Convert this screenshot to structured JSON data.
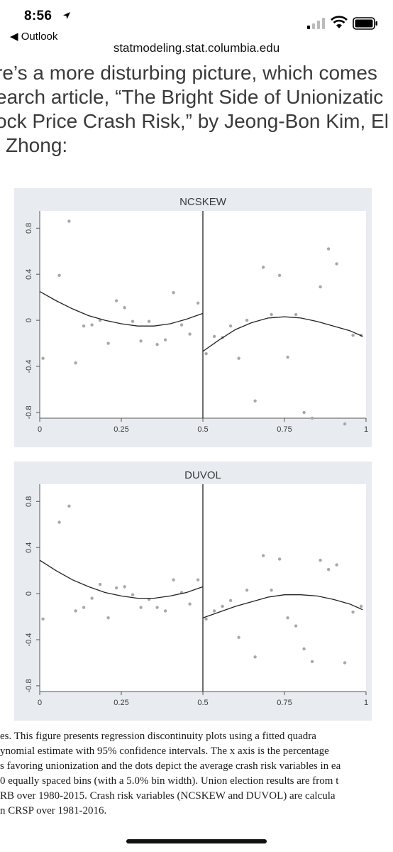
{
  "status_bar": {
    "time": "8:56",
    "back_app": "◀ Outlook"
  },
  "url": "statmodeling.stat.columbia.edu",
  "article_lines": [
    "re’s a more disturbing picture, which comes",
    "earch article, “The Bright Side of Unionizatic",
    "ock Price Crash Risk,” by Jeong-Bon Kim, El",
    "i Zhong:"
  ],
  "chart_data": [
    {
      "type": "scatter",
      "title": "NCSKEW",
      "xlim": [
        0,
        1
      ],
      "ylim": [
        -0.85,
        0.95
      ],
      "xticks": [
        0,
        0.25,
        0.5,
        0.75,
        1
      ],
      "xtick_labels": [
        "0",
        "0.25",
        "0.5",
        "0.75",
        "1"
      ],
      "yticks": [
        -0.8,
        -0.4,
        0,
        0.4,
        0.8
      ],
      "ytick_labels": [
        "-0.8",
        "-0.4",
        "0",
        "0.4",
        "0.8"
      ],
      "cutoff": 0.5,
      "points": [
        [
          0.01,
          -0.33
        ],
        [
          0.06,
          0.39
        ],
        [
          0.09,
          0.86
        ],
        [
          0.11,
          -0.37
        ],
        [
          0.135,
          -0.05
        ],
        [
          0.16,
          -0.04
        ],
        [
          0.185,
          0.0
        ],
        [
          0.21,
          -0.2
        ],
        [
          0.235,
          0.17
        ],
        [
          0.26,
          0.11
        ],
        [
          0.285,
          -0.01
        ],
        [
          0.31,
          -0.18
        ],
        [
          0.335,
          -0.01
        ],
        [
          0.36,
          -0.21
        ],
        [
          0.385,
          -0.17
        ],
        [
          0.41,
          0.24
        ],
        [
          0.435,
          -0.04
        ],
        [
          0.46,
          -0.12
        ],
        [
          0.485,
          0.15
        ],
        [
          0.51,
          -0.29
        ],
        [
          0.535,
          -0.14
        ],
        [
          0.56,
          -0.15
        ],
        [
          0.585,
          -0.05
        ],
        [
          0.61,
          -0.33
        ],
        [
          0.635,
          0.0
        ],
        [
          0.66,
          -0.7
        ],
        [
          0.685,
          0.46
        ],
        [
          0.71,
          0.05
        ],
        [
          0.735,
          0.39
        ],
        [
          0.76,
          -0.32
        ],
        [
          0.785,
          0.05
        ],
        [
          0.81,
          -0.8
        ],
        [
          0.835,
          -0.85
        ],
        [
          0.86,
          0.29
        ],
        [
          0.885,
          0.62
        ],
        [
          0.91,
          0.49
        ],
        [
          0.935,
          -0.9
        ],
        [
          0.96,
          -0.13
        ],
        [
          0.985,
          -0.13
        ]
      ],
      "fit_left": [
        [
          0.0,
          0.25
        ],
        [
          0.05,
          0.17
        ],
        [
          0.1,
          0.1
        ],
        [
          0.15,
          0.04
        ],
        [
          0.2,
          0.0
        ],
        [
          0.25,
          -0.03
        ],
        [
          0.3,
          -0.05
        ],
        [
          0.35,
          -0.05
        ],
        [
          0.4,
          -0.03
        ],
        [
          0.45,
          0.01
        ],
        [
          0.5,
          0.06
        ]
      ],
      "fit_right": [
        [
          0.5,
          -0.27
        ],
        [
          0.55,
          -0.17
        ],
        [
          0.6,
          -0.08
        ],
        [
          0.65,
          -0.02
        ],
        [
          0.7,
          0.02
        ],
        [
          0.75,
          0.03
        ],
        [
          0.8,
          0.02
        ],
        [
          0.85,
          -0.01
        ],
        [
          0.9,
          -0.05
        ],
        [
          0.95,
          -0.09
        ],
        [
          0.99,
          -0.14
        ]
      ]
    },
    {
      "type": "scatter",
      "title": "DUVOL",
      "xlim": [
        0,
        1
      ],
      "ylim": [
        -0.85,
        0.95
      ],
      "xticks": [
        0,
        0.25,
        0.5,
        0.75,
        1
      ],
      "xtick_labels": [
        "0",
        "0.25",
        "0.5",
        "0.75",
        "1"
      ],
      "yticks": [
        -0.8,
        -0.4,
        0,
        0.4,
        0.8
      ],
      "ytick_labels": [
        "-0.8",
        "-0.4",
        "0",
        "0.4",
        "0.8"
      ],
      "cutoff": 0.5,
      "points": [
        [
          0.01,
          -0.22
        ],
        [
          0.06,
          0.62
        ],
        [
          0.09,
          0.76
        ],
        [
          0.11,
          -0.15
        ],
        [
          0.135,
          -0.12
        ],
        [
          0.16,
          -0.04
        ],
        [
          0.185,
          0.08
        ],
        [
          0.21,
          -0.21
        ],
        [
          0.235,
          0.05
        ],
        [
          0.26,
          0.06
        ],
        [
          0.285,
          -0.01
        ],
        [
          0.31,
          -0.12
        ],
        [
          0.335,
          -0.05
        ],
        [
          0.36,
          -0.12
        ],
        [
          0.385,
          -0.15
        ],
        [
          0.41,
          0.12
        ],
        [
          0.435,
          0.01
        ],
        [
          0.46,
          -0.09
        ],
        [
          0.485,
          0.12
        ],
        [
          0.51,
          -0.22
        ],
        [
          0.535,
          -0.15
        ],
        [
          0.56,
          -0.11
        ],
        [
          0.585,
          -0.06
        ],
        [
          0.61,
          -0.38
        ],
        [
          0.635,
          0.03
        ],
        [
          0.66,
          -0.55
        ],
        [
          0.685,
          0.33
        ],
        [
          0.71,
          0.03
        ],
        [
          0.735,
          0.3
        ],
        [
          0.76,
          -0.21
        ],
        [
          0.785,
          -0.28
        ],
        [
          0.81,
          -0.48
        ],
        [
          0.835,
          -0.59
        ],
        [
          0.86,
          0.29
        ],
        [
          0.885,
          0.21
        ],
        [
          0.91,
          0.25
        ],
        [
          0.935,
          -0.6
        ],
        [
          0.96,
          -0.16
        ],
        [
          0.985,
          -0.11
        ]
      ],
      "fit_left": [
        [
          0.0,
          0.29
        ],
        [
          0.05,
          0.2
        ],
        [
          0.1,
          0.12
        ],
        [
          0.15,
          0.06
        ],
        [
          0.2,
          0.01
        ],
        [
          0.25,
          -0.02
        ],
        [
          0.3,
          -0.04
        ],
        [
          0.35,
          -0.04
        ],
        [
          0.4,
          -0.02
        ],
        [
          0.45,
          0.01
        ],
        [
          0.5,
          0.06
        ]
      ],
      "fit_right": [
        [
          0.5,
          -0.21
        ],
        [
          0.55,
          -0.16
        ],
        [
          0.6,
          -0.11
        ],
        [
          0.65,
          -0.07
        ],
        [
          0.7,
          -0.03
        ],
        [
          0.75,
          -0.01
        ],
        [
          0.8,
          -0.01
        ],
        [
          0.85,
          -0.02
        ],
        [
          0.9,
          -0.05
        ],
        [
          0.95,
          -0.09
        ],
        [
          0.99,
          -0.14
        ]
      ]
    }
  ],
  "caption_lines": [
    "es. This figure presents regression discontinuity plots using a fitted quadra",
    "ynomial estimate with 95% confidence intervals. The x axis is the percentage",
    "s favoring unionization and the dots depict the average crash risk variables in ea",
    "0 equally spaced bins (with a 5.0% bin width). Union election results are from t",
    "RB over 1980-2015. Crash risk variables (NCSKEW and DUVOL) are calcula",
    "n CRSP over 1981-2016."
  ],
  "colors": {
    "chart_bg": "#e8ecf0",
    "plot_bg": "#ffffff",
    "point": "#a8a8a8",
    "line": "#222222",
    "text": "#3a3a3a"
  }
}
